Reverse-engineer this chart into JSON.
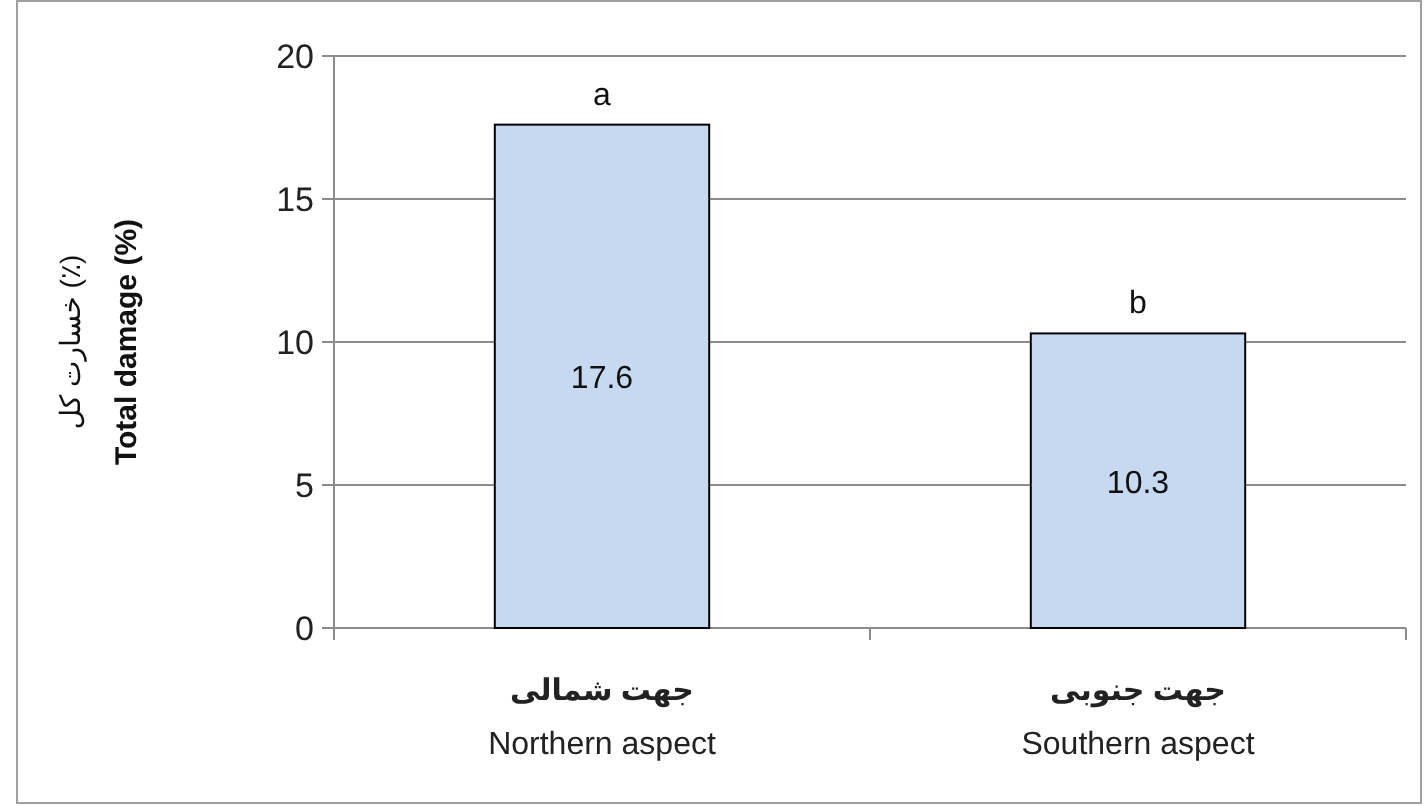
{
  "chart_data": {
    "type": "bar",
    "categories": [
      "جهت شمالی\nNorthern aspect",
      "جهت جنوبی\nSouthern aspect"
    ],
    "values": [
      17.6,
      10.3
    ],
    "color": "#c6d9f1",
    "ylabel": "خسارت کل (٪)\nTotal damage (%)",
    "ylim": [
      0,
      20
    ],
    "yticks": [
      0,
      5,
      10,
      15,
      20
    ],
    "grid": "y",
    "data_labels": true,
    "annotations": [
      {
        "text": "a",
        "x": "جهت شمالی\nNorthern aspect",
        "y": 17.6
      },
      {
        "text": "b",
        "x": "جهت جنوبی\nSouthern aspect",
        "y": 10.3
      }
    ]
  }
}
